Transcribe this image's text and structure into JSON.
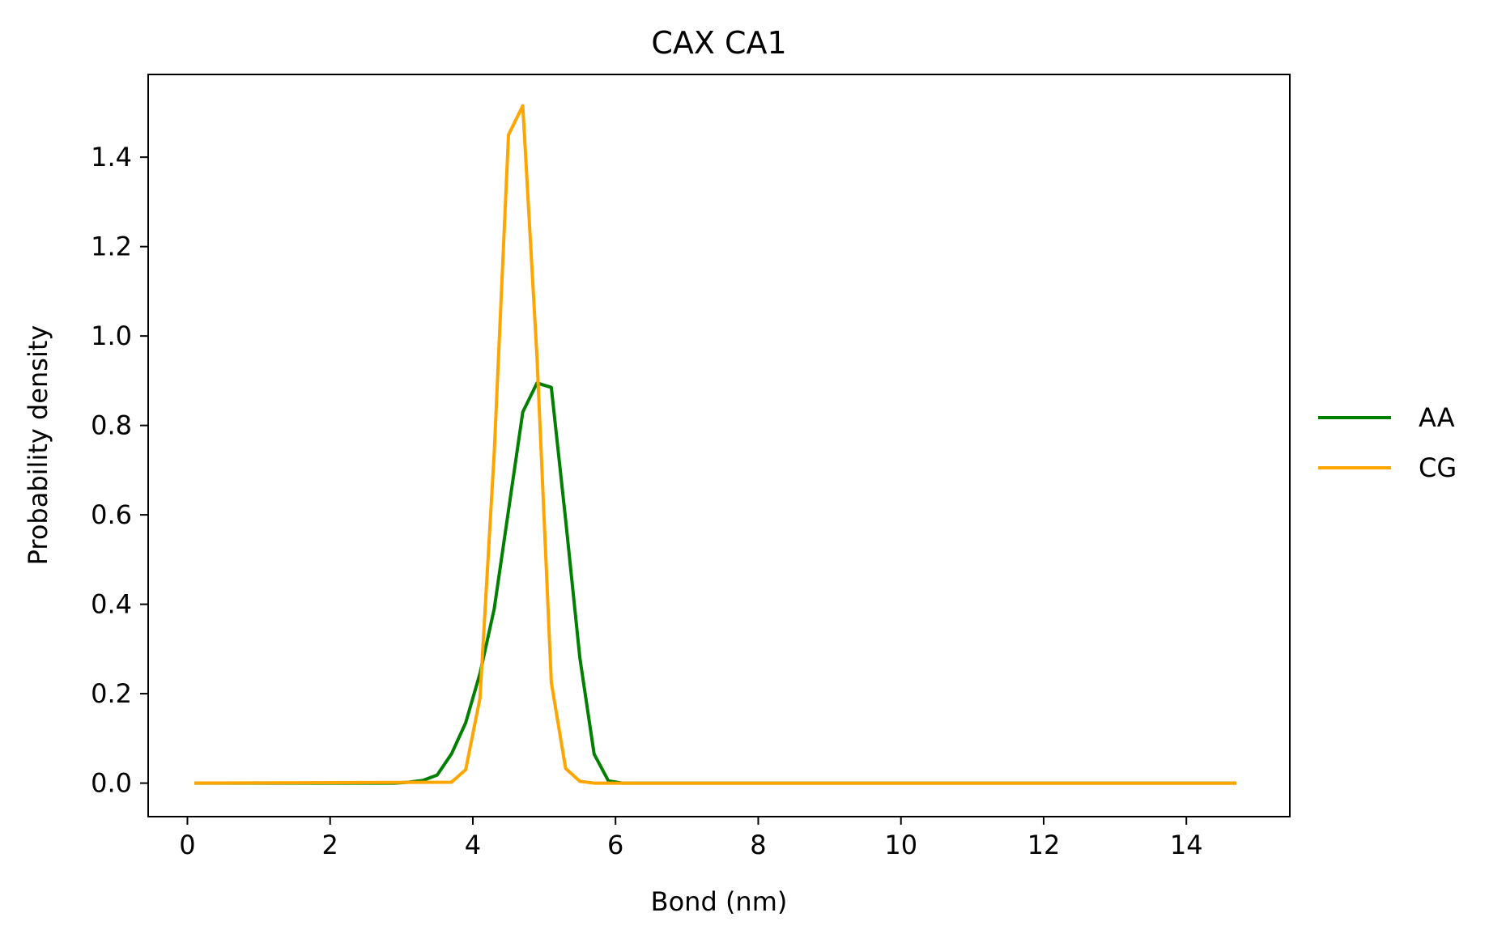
{
  "chart_data": {
    "type": "line",
    "title": "CAX CA1",
    "xlabel": "Bond (nm)",
    "ylabel": "Probability density",
    "xlim": [
      -0.55,
      15.45
    ],
    "ylim": [
      -0.075,
      1.585
    ],
    "xticks": [
      0,
      2,
      4,
      6,
      8,
      10,
      12,
      14
    ],
    "yticks": [
      0.0,
      0.2,
      0.4,
      0.6,
      0.8,
      1.0,
      1.2,
      1.4
    ],
    "xtick_labels": [
      "0",
      "2",
      "4",
      "6",
      "8",
      "10",
      "12",
      "14"
    ],
    "ytick_labels": [
      "0.0",
      "0.2",
      "0.4",
      "0.6",
      "0.8",
      "1.0",
      "1.2",
      "1.4"
    ],
    "grid": false,
    "legend_position": "center-right, outside plot",
    "series": [
      {
        "name": "AA",
        "color": "#008000",
        "x": [
          0.1,
          2.9,
          3.1,
          3.3,
          3.5,
          3.7,
          3.9,
          4.1,
          4.3,
          4.5,
          4.7,
          4.9,
          5.1,
          5.3,
          5.5,
          5.7,
          5.9,
          6.1,
          14.7
        ],
        "y": [
          0.0,
          0.0,
          0.002,
          0.006,
          0.018,
          0.065,
          0.135,
          0.245,
          0.39,
          0.61,
          0.83,
          0.895,
          0.885,
          0.59,
          0.28,
          0.065,
          0.005,
          0.0,
          0.0
        ]
      },
      {
        "name": "CG",
        "color": "#ffa500",
        "x": [
          0.1,
          3.7,
          3.9,
          4.1,
          4.3,
          4.5,
          4.7,
          4.9,
          5.1,
          5.3,
          5.5,
          5.7,
          14.7
        ],
        "y": [
          0.0,
          0.002,
          0.03,
          0.19,
          0.74,
          1.45,
          1.515,
          0.95,
          0.225,
          0.033,
          0.004,
          0.0,
          0.0
        ]
      }
    ]
  }
}
